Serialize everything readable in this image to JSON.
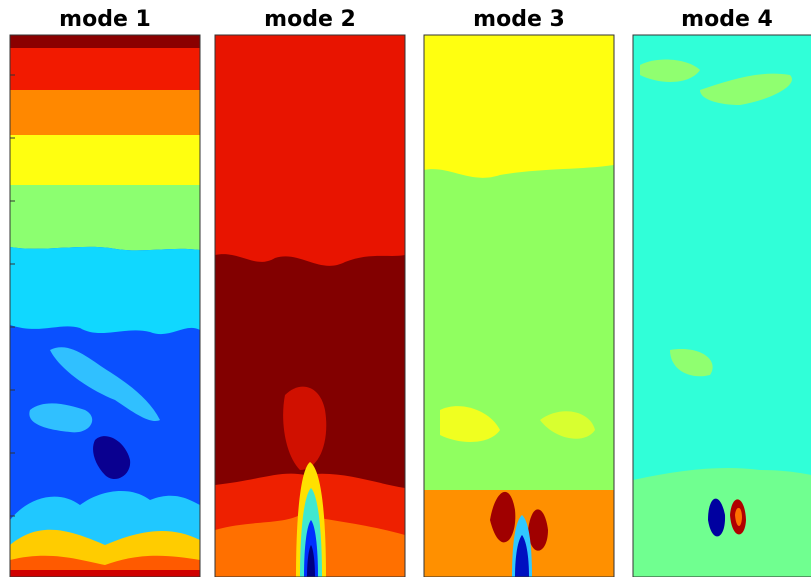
{
  "panels": [
    {
      "title": "mode 1"
    },
    {
      "title": "mode 2"
    },
    {
      "title": "mode 3"
    },
    {
      "title": "mode 4"
    }
  ]
}
